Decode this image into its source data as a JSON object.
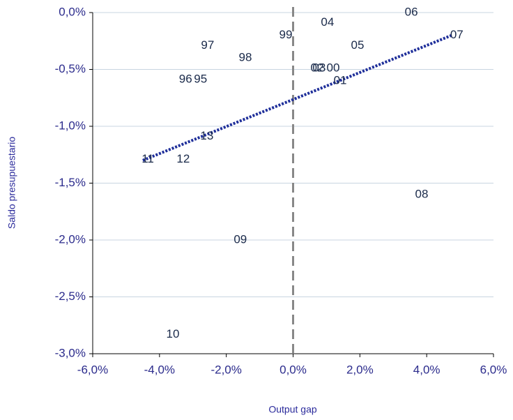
{
  "chart_data": {
    "type": "scatter",
    "xlabel": "Output gap",
    "ylabel": "Saldo presupuestario",
    "labels": [
      "06",
      "04",
      "99",
      "07",
      "97",
      "05",
      "98",
      "02",
      "03",
      "00",
      "96",
      "95",
      "01",
      "13",
      "11",
      "12",
      "08",
      "09",
      "10"
    ],
    "x": [
      3.54,
      1.03,
      -0.22,
      4.9,
      -2.56,
      1.93,
      -1.43,
      0.72,
      0.78,
      1.2,
      -3.22,
      -2.77,
      1.41,
      -2.58,
      -4.35,
      -3.29,
      3.85,
      -1.58,
      -3.6
    ],
    "values": [
      0.0,
      -0.09,
      -0.2,
      -0.2,
      -0.29,
      -0.29,
      -0.4,
      -0.49,
      -0.49,
      -0.49,
      -0.59,
      -0.59,
      -0.6,
      -1.09,
      -1.29,
      -1.29,
      -1.6,
      -2.0,
      -2.83
    ],
    "color": "#1a2a4a",
    "trendline": {
      "x": [
        -4.5,
        4.75
      ],
      "values": [
        -1.3,
        -0.2
      ],
      "color": "#1f2f9a"
    },
    "xlim": [
      -6,
      6
    ],
    "ylim": [
      -3,
      0
    ],
    "xticks": [
      {
        "value": -6,
        "label": "-6,0%"
      },
      {
        "value": -4,
        "label": "-4,0%"
      },
      {
        "value": -2,
        "label": "-2,0%"
      },
      {
        "value": 0,
        "label": "0,0%"
      },
      {
        "value": 2,
        "label": "2,0%"
      },
      {
        "value": 4,
        "label": "4,0%"
      },
      {
        "value": 6,
        "label": "6,0%"
      }
    ],
    "yticks": [
      {
        "value": 0,
        "label": "0,0%"
      },
      {
        "value": -0.5,
        "label": "-0,5%"
      },
      {
        "value": -1,
        "label": "-1,0%"
      },
      {
        "value": -1.5,
        "label": "-1,5%"
      },
      {
        "value": -2,
        "label": "-2,0%"
      },
      {
        "value": -2.5,
        "label": "-2,5%"
      },
      {
        "value": -3,
        "label": "-3,0%"
      }
    ],
    "grid": true,
    "reference_x": 0
  }
}
